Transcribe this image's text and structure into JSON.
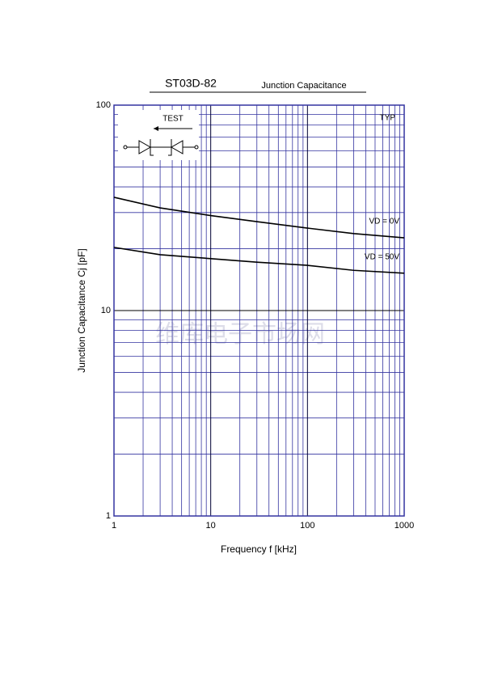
{
  "chart_data": {
    "type": "line",
    "title": "ST03D-82",
    "subtitle": "Junction Capacitance",
    "x_label": "Frequency  f  [kHz]",
    "y_label": "Junction Capacitance  Cj  [pF]",
    "annotations": {
      "test": "TEST",
      "typ": "TYP",
      "watermark": "维库电子市场网"
    },
    "log_x": true,
    "log_y": true,
    "grid": true,
    "x": [
      1,
      3,
      10,
      30,
      100,
      300,
      1000
    ],
    "series": [
      {
        "name": "VD = 0V",
        "color": "#000000",
        "values": [
          35.6,
          31.6,
          29,
          27.1,
          25.2,
          23.7,
          22.6
        ]
      },
      {
        "name": "VD = 50V",
        "color": "#000000",
        "values": [
          20.3,
          18.7,
          17.9,
          17.2,
          16.6,
          15.7,
          15.2
        ]
      }
    ],
    "xlim": [
      1,
      1000
    ],
    "xticks": [
      1,
      10,
      100,
      1000
    ],
    "x_minor_ticks": [
      2,
      3,
      4,
      5,
      6,
      7,
      8,
      9,
      20,
      30,
      40,
      50,
      60,
      70,
      80,
      90,
      200,
      300,
      400,
      500,
      600,
      700,
      800,
      900
    ],
    "ylim": [
      1,
      100
    ],
    "yticks": [
      1,
      10,
      100
    ],
    "y_minor_ticks": [
      2,
      3,
      4,
      5,
      6,
      7,
      8,
      9,
      20,
      30,
      40,
      50,
      60,
      70,
      80,
      90
    ]
  }
}
